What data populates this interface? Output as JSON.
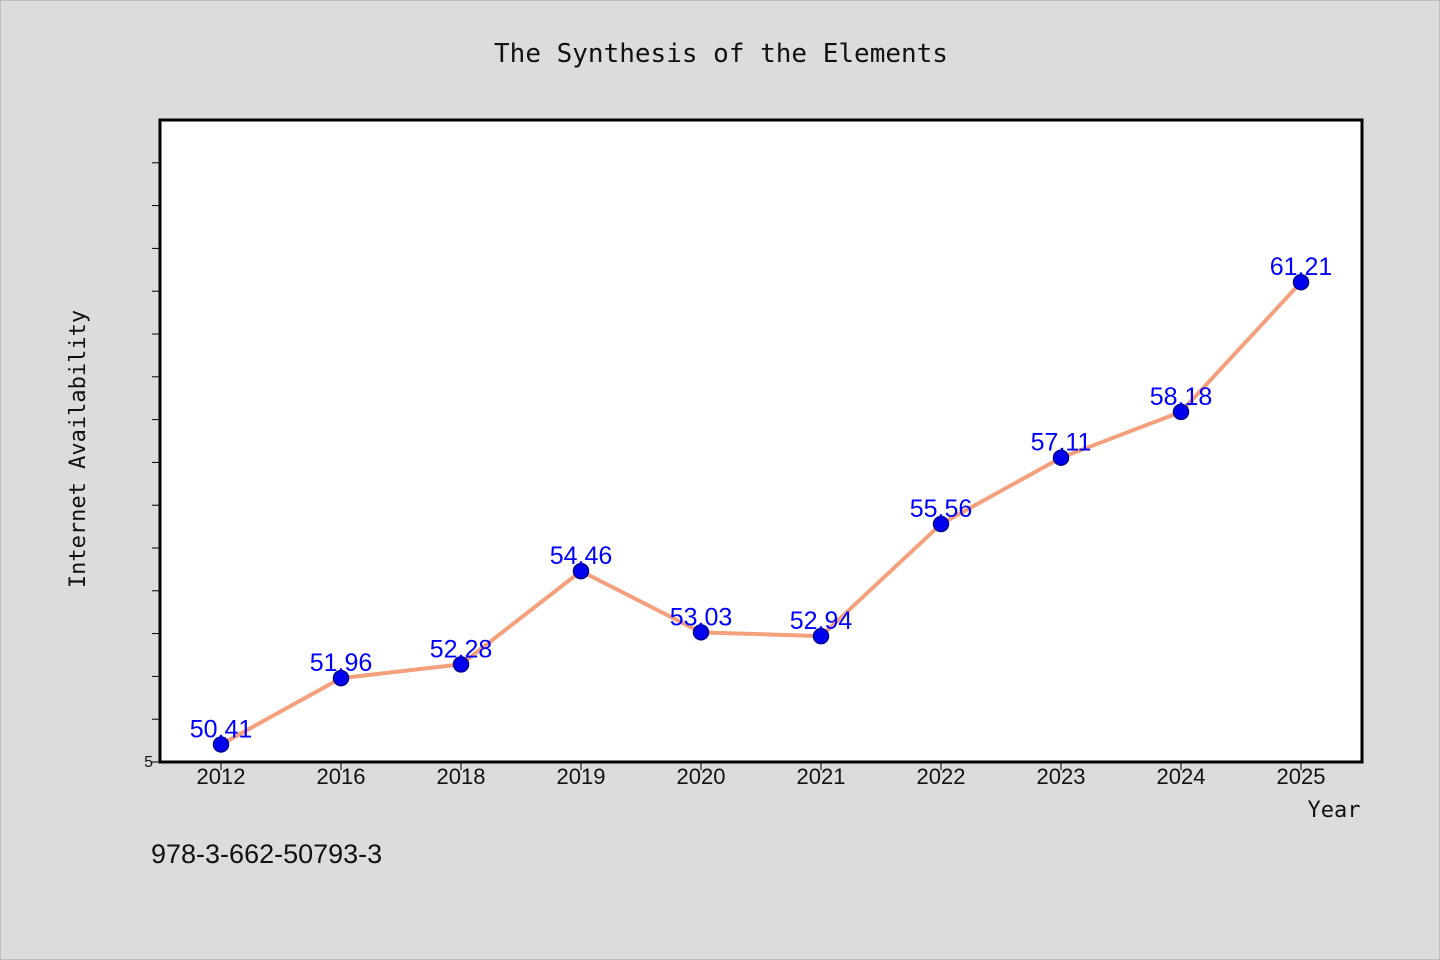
{
  "chart_data": {
    "type": "line",
    "title": "The Synthesis of the Elements",
    "xlabel": "Year",
    "ylabel": "Internet Availability",
    "categories": [
      "2012",
      "2016",
      "2018",
      "2019",
      "2020",
      "2021",
      "2022",
      "2023",
      "2024",
      "2025"
    ],
    "series": [
      {
        "values": [
          50.41,
          51.96,
          52.28,
          54.46,
          53.03,
          52.94,
          55.56,
          57.11,
          58.18,
          61.21
        ]
      }
    ],
    "data_labels": [
      "50.41",
      "51.96",
      "52.28",
      "54.46",
      "53.03",
      "52.94",
      "55.56",
      "57.11",
      "58.18",
      "61.21"
    ],
    "y_tick_labels": [
      "5"
    ],
    "ylim": [
      50.0,
      65.0
    ],
    "grid": false,
    "legend": "none",
    "colors": {
      "line": "#f4a07c",
      "marker_fill": "#0000ee",
      "marker_edge": "#00008b",
      "data_label": "#0000ff",
      "background": "#dcdcdc",
      "plot_background": "#ffffff"
    }
  },
  "footnote": "978-3-662-50793-3"
}
